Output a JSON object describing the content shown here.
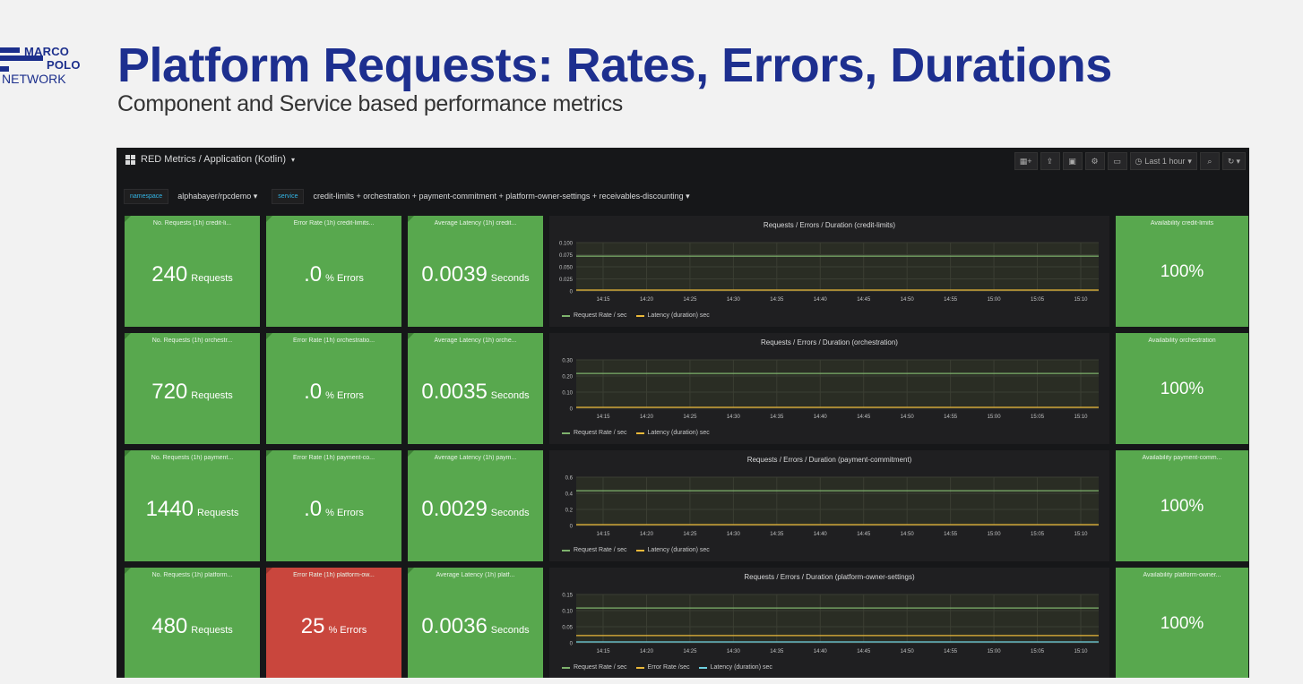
{
  "slide": {
    "logo": {
      "line1": "MARCO",
      "line2": "POLO",
      "line3": "NETWORK"
    },
    "title": "Platform Requests: Rates, Errors, Durations",
    "subtitle": "Component and Service based performance metrics"
  },
  "dashboard": {
    "title": "RED Metrics / Application (Kotlin)",
    "time_range": "Last 1 hour",
    "toolbar_icons": [
      "add-panel-icon",
      "share-icon",
      "save-icon",
      "settings-icon",
      "tv-mode-icon",
      "zoom-out-icon",
      "refresh-icon"
    ],
    "variables": [
      {
        "label": "namespace",
        "value": "alphabayer/rpcdemo"
      },
      {
        "label": "service",
        "value": "credit-limits + orchestration + payment-commitment + platform-owner-settings + receivables-discounting"
      }
    ],
    "colors": {
      "ok": "#58a84e",
      "error": "#c9463d",
      "request_rate": "#7eb26d",
      "latency": "#eab839",
      "error_rate": "#eab839",
      "latency_alt": "#6ed0e0"
    },
    "x_ticks": [
      "14:15",
      "14:20",
      "14:25",
      "14:30",
      "14:35",
      "14:40",
      "14:45",
      "14:50",
      "14:55",
      "15:00",
      "15:05",
      "15:10"
    ],
    "rows": [
      {
        "requests": {
          "title": "No. Requests (1h) credit-li...",
          "value": "240",
          "unit": "Requests"
        },
        "errors": {
          "title": "Error Rate (1h) credit-limits...",
          "value": ".0",
          "unit": "% Errors",
          "status": "ok"
        },
        "latency": {
          "title": "Average Latency (1h) credit...",
          "value": "0.0039",
          "unit": "Seconds"
        },
        "graph": {
          "title": "Requests / Errors / Duration (credit-limits)",
          "y_ticks": [
            "0.100",
            "0.075",
            "0.050",
            "0.025",
            "0"
          ],
          "legend": [
            {
              "name": "Request Rate / sec",
              "color": "#7eb26d"
            },
            {
              "name": "Latency (duration) sec",
              "color": "#eab839"
            }
          ]
        },
        "availability": {
          "title": "Availability credit-limits",
          "value": "100%"
        }
      },
      {
        "requests": {
          "title": "No. Requests (1h) orchestr...",
          "value": "720",
          "unit": "Requests"
        },
        "errors": {
          "title": "Error Rate (1h) orchestratio...",
          "value": ".0",
          "unit": "% Errors",
          "status": "ok"
        },
        "latency": {
          "title": "Average Latency (1h) orche...",
          "value": "0.0035",
          "unit": "Seconds"
        },
        "graph": {
          "title": "Requests / Errors / Duration (orchestration)",
          "y_ticks": [
            "0.30",
            "0.20",
            "0.10",
            "0"
          ],
          "legend": [
            {
              "name": "Request Rate / sec",
              "color": "#7eb26d"
            },
            {
              "name": "Latency (duration) sec",
              "color": "#eab839"
            }
          ]
        },
        "availability": {
          "title": "Availability orchestration",
          "value": "100%"
        }
      },
      {
        "requests": {
          "title": "No. Requests (1h) payment...",
          "value": "1440",
          "unit": "Requests"
        },
        "errors": {
          "title": "Error Rate (1h) payment-co...",
          "value": ".0",
          "unit": "% Errors",
          "status": "ok"
        },
        "latency": {
          "title": "Average Latency (1h) paym...",
          "value": "0.0029",
          "unit": "Seconds"
        },
        "graph": {
          "title": "Requests / Errors / Duration (payment-commitment)",
          "y_ticks": [
            "0.6",
            "0.4",
            "0.2",
            "0"
          ],
          "legend": [
            {
              "name": "Request Rate / sec",
              "color": "#7eb26d"
            },
            {
              "name": "Latency (duration) sec",
              "color": "#eab839"
            }
          ]
        },
        "availability": {
          "title": "Availability payment-comm...",
          "value": "100%"
        }
      },
      {
        "requests": {
          "title": "No. Requests (1h) platform...",
          "value": "480",
          "unit": "Requests"
        },
        "errors": {
          "title": "Error Rate (1h) platform-ow...",
          "value": "25",
          "unit": "% Errors",
          "status": "error"
        },
        "latency": {
          "title": "Average Latency (1h) platf...",
          "value": "0.0036",
          "unit": "Seconds"
        },
        "graph": {
          "title": "Requests / Errors / Duration (platform-owner-settings)",
          "y_ticks": [
            "0.15",
            "0.10",
            "0.05",
            "0"
          ],
          "legend": [
            {
              "name": "Request Rate / sec",
              "color": "#7eb26d"
            },
            {
              "name": "Error Rate /sec",
              "color": "#eab839"
            },
            {
              "name": "Latency (duration) sec",
              "color": "#6ed0e0"
            }
          ]
        },
        "availability": {
          "title": "Availability platform-owner...",
          "value": "100%"
        }
      }
    ]
  }
}
